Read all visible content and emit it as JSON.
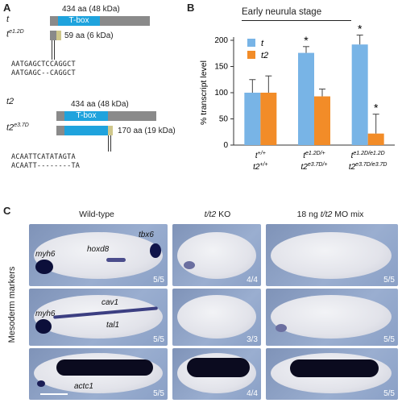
{
  "panelA": {
    "label": "A",
    "t_gene": "t",
    "t_len": "434 aa (48 kDa)",
    "tbox": "T-box",
    "t_mut": "t",
    "t_mut_sup": "e1.2D",
    "t_mut_len": "59 aa (6 kDa)",
    "seq1": "AATGAGCTCCAGGCT",
    "seq2": "AATGAGC--CAGGCT",
    "t2_gene": "t2",
    "t2_len": "434 aa (48 kDa)",
    "t2_mut": "t2",
    "t2_mut_sup": "e3.7D",
    "t2_mut_len": "170 aa (19 kDa)",
    "seq3": "ACAATTCATATAGTA",
    "seq4": "ACAATT--------TA"
  },
  "panelB": {
    "label": "B",
    "title": "Early neurula stage",
    "ylabel": "% transcript level",
    "legend_t": "t",
    "legend_t2": "t2",
    "star": "*",
    "groups": [
      {
        "top": "t",
        "top_sup": "+/+",
        "bot": "t2",
        "bot_sup": "+/+"
      },
      {
        "top": "t",
        "top_sup": "e1.2D/+",
        "bot": "t2",
        "bot_sup": "e3.7D/+"
      },
      {
        "top": "t",
        "top_sup": "e1.2D/e1.2D",
        "bot": "t2",
        "bot_sup": "e3.7D/e3.7D"
      }
    ]
  },
  "chart_data": {
    "type": "bar",
    "categories": [
      "t+/+ t2+/+",
      "te1.2D/+ t2e3.7D/+",
      "te1.2D/e1.2D t2e3.7D/e3.7D"
    ],
    "series": [
      {
        "name": "t",
        "values": [
          100,
          176,
          192
        ],
        "errors": [
          25,
          12,
          18
        ],
        "color": "#78b4e6"
      },
      {
        "name": "t2",
        "values": [
          100,
          93,
          22
        ],
        "errors": [
          32,
          14,
          37
        ],
        "color": "#f28c28"
      }
    ],
    "title": "Early neurula stage",
    "ylabel": "% transcript level",
    "ylim": [
      0,
      200
    ],
    "yticks": [
      0,
      50,
      100,
      150,
      200
    ],
    "significant": [
      [
        false,
        false
      ],
      [
        true,
        false
      ],
      [
        true,
        true
      ]
    ]
  },
  "panelC": {
    "label": "C",
    "col1": "Wild-type",
    "col2_a": "t/t2",
    "col2_b": " KO",
    "col3_a": "18 ng ",
    "col3_b": "t/t2",
    "col3_c": " MO mix",
    "side": "Mesoderm markers",
    "markers": {
      "myh6a": "myh6",
      "hoxd8": "hoxd8",
      "tbx6": "tbx6",
      "myh6b": "myh6",
      "cav1": "cav1",
      "tal1": "tal1",
      "actc1": "actc1"
    },
    "ratios": [
      [
        "5/5",
        "4/4",
        "5/5"
      ],
      [
        "5/5",
        "3/3",
        "5/5"
      ],
      [
        "5/5",
        "4/4",
        "5/5"
      ]
    ]
  }
}
